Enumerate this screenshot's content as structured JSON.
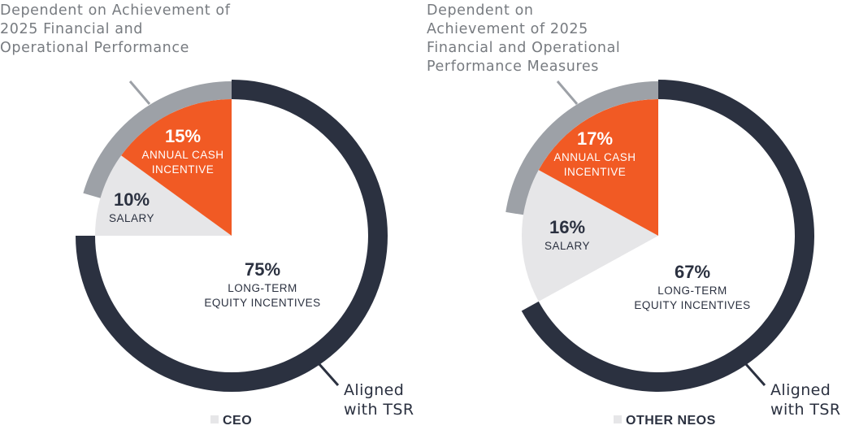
{
  "colors": {
    "navy": "#2b3140",
    "orange": "#f15a24",
    "light_gray": "#e6e6e8",
    "mid_gray": "#9da1a7",
    "callout_text": "#777b80"
  },
  "chart_data": [
    {
      "type": "pie",
      "title": "CEO",
      "slices": [
        {
          "label": "LONG-TERM EQUITY INCENTIVES",
          "pct_label": "75%",
          "value": 75
        },
        {
          "label": "SALARY",
          "pct_label": "10%",
          "value": 10
        },
        {
          "label": "ANNUAL CASH INCENTIVE",
          "pct_label": "15%",
          "value": 15
        }
      ],
      "callouts": {
        "financial": "Dependent on Achievement of 2025 Financial and Operational Performance",
        "tsr": "Aligned with TSR"
      }
    },
    {
      "type": "pie",
      "title": "OTHER NEOS",
      "slices": [
        {
          "label": "LONG-TERM EQUITY INCENTIVES",
          "pct_label": "67%",
          "value": 67
        },
        {
          "label": "SALARY",
          "pct_label": "16%",
          "value": 16
        },
        {
          "label": "ANNUAL CASH INCENTIVE",
          "pct_label": "17%",
          "value": 17
        }
      ],
      "callouts": {
        "financial": "Dependent on Achievement of 2025 Financial and Operational Performance Measures",
        "tsr": "Aligned with TSR"
      }
    }
  ]
}
